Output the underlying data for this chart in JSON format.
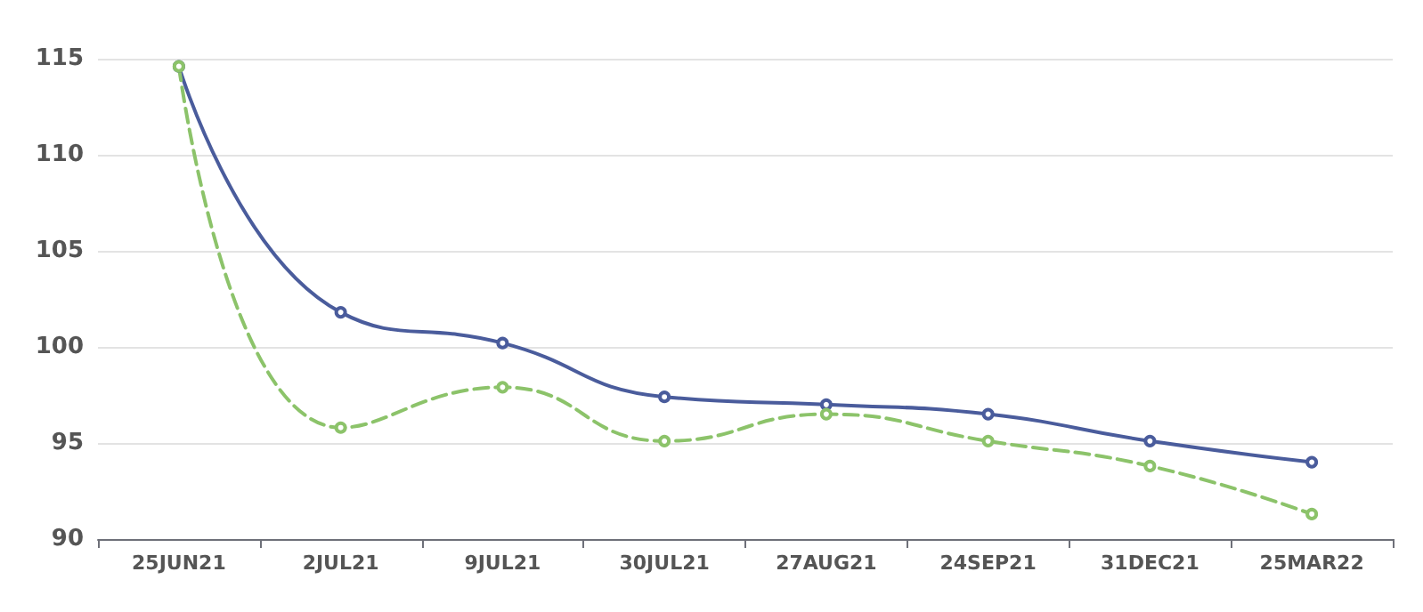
{
  "chart_data": {
    "type": "line",
    "categories": [
      "25JUN21",
      "2JUL21",
      "9JUL21",
      "30JUL21",
      "27AUG21",
      "24SEP21",
      "31DEC21",
      "25MAR22"
    ],
    "series": [
      {
        "color": "#4a5c9c",
        "line_style": "solid",
        "values": [
          114.6,
          101.8,
          100.2,
          97.4,
          97.0,
          96.5,
          95.1,
          94.0
        ]
      },
      {
        "color": "#8cc36a",
        "line_style": "dashed",
        "values": [
          114.6,
          95.8,
          97.9,
          95.1,
          96.5,
          95.1,
          93.8,
          91.3
        ]
      }
    ],
    "ylim": [
      90,
      115
    ],
    "yticks": [
      90,
      95,
      100,
      105,
      110,
      115
    ],
    "grid": "y",
    "marker": "circle"
  }
}
